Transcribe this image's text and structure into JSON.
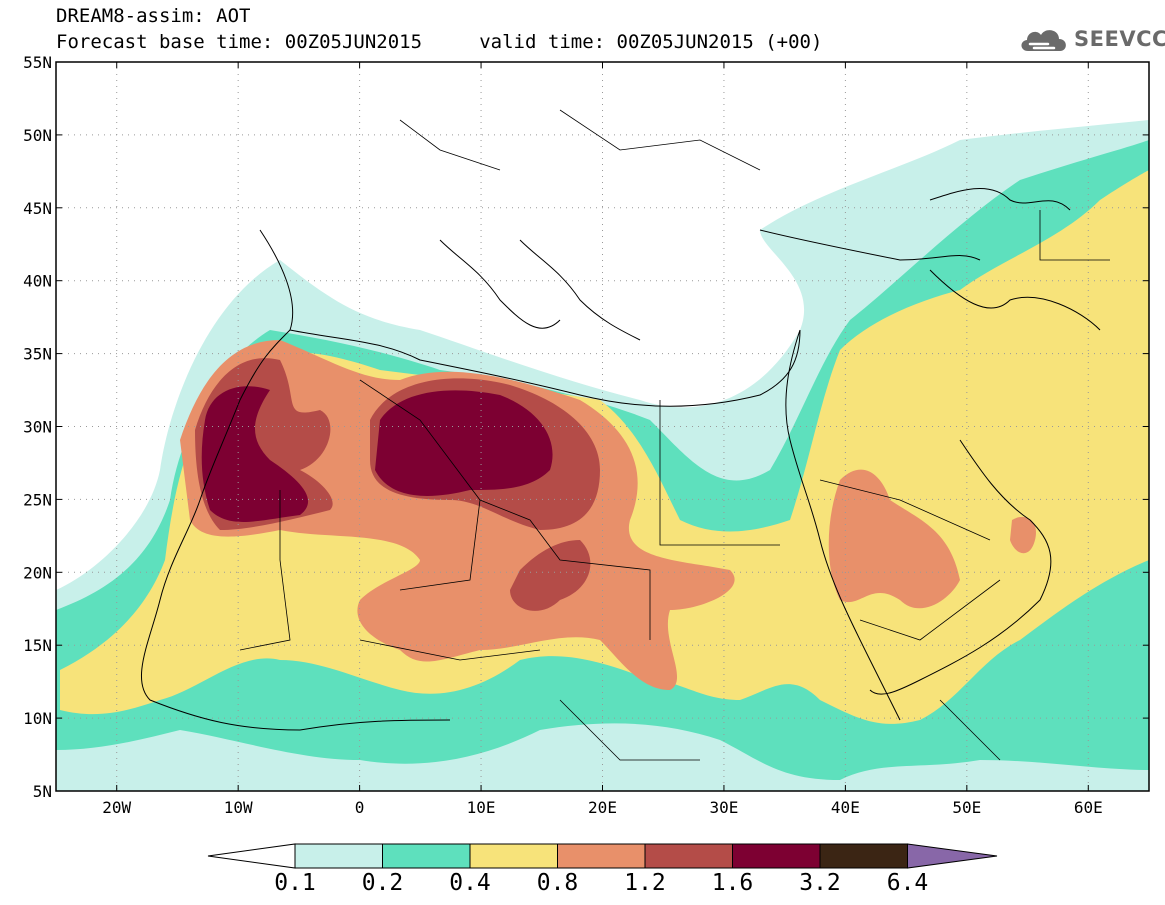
{
  "header": {
    "title_line1": "DREAM8-assim: AOT",
    "title_line2": "Forecast base time: 00Z05JUN2015     valid time: 00Z05JUN2015 (+00)"
  },
  "logo": {
    "text": "SEEVCCC",
    "icon": "cloud-icon"
  },
  "map": {
    "lon_range": [
      -25,
      65
    ],
    "lat_range": [
      5,
      55
    ],
    "gridlines": "dotted",
    "lat_labels": [
      "5N",
      "10N",
      "15N",
      "20N",
      "25N",
      "30N",
      "35N",
      "40N",
      "45N",
      "50N",
      "55N"
    ],
    "lon_labels": [
      "20W",
      "10W",
      "0",
      "10E",
      "20E",
      "30E",
      "40E",
      "50E",
      "60E"
    ]
  },
  "colorbar": {
    "colors": [
      "#ffffff",
      "#c8f0ea",
      "#5ee0bd",
      "#f7e37a",
      "#e8906a",
      "#b44c48",
      "#7d0032",
      "#3b2514",
      "#8867a8"
    ],
    "labels": [
      "0.1",
      "0.2",
      "0.4",
      "0.8",
      "1.2",
      "1.6",
      "3.2",
      "6.4"
    ]
  }
}
